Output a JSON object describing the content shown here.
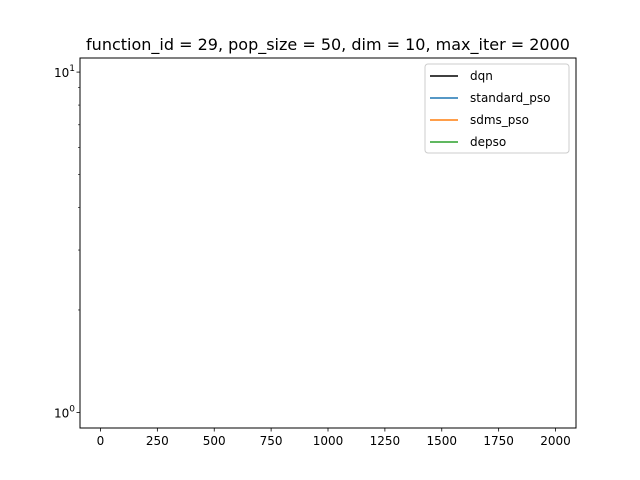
{
  "chart_data": {
    "type": "line",
    "title": "function_id = 29, pop_size = 50, dim = 10, max_iter = 2000",
    "xlabel": "",
    "ylabel": "",
    "xlim": [
      -90,
      2090
    ],
    "x_ticks": [
      0,
      250,
      500,
      750,
      1000,
      1250,
      1500,
      1750,
      2000
    ],
    "x_tick_labels": [
      "0",
      "250",
      "500",
      "750",
      "1000",
      "1250",
      "1500",
      "1750",
      "2000"
    ],
    "y_scale": "log",
    "ylim": [
      0.9,
      11
    ],
    "y_major_ticks": [
      1,
      10
    ],
    "y_tick_labels": [
      {
        "base": "10",
        "exp": "0"
      },
      {
        "base": "10",
        "exp": "1"
      }
    ],
    "grid": false,
    "legend_position": "top-right",
    "series": [
      {
        "name": "dqn",
        "color": "#000000",
        "x": [],
        "y": []
      },
      {
        "name": "standard_pso",
        "color": "#1f77b4",
        "x": [],
        "y": []
      },
      {
        "name": "sdms_pso",
        "color": "#ff7f0e",
        "x": [],
        "y": []
      },
      {
        "name": "depso",
        "color": "#2ca02c",
        "x": [],
        "y": []
      }
    ]
  }
}
